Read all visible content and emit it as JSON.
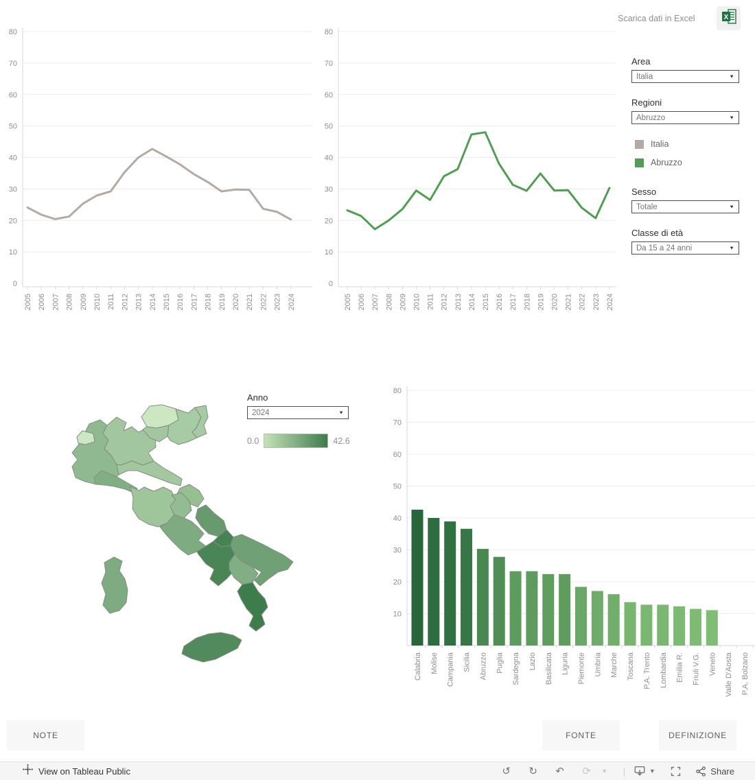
{
  "header": {
    "download_label": "Scarica dati in Excel",
    "excel_icon": "excel-icon"
  },
  "filters": {
    "area": {
      "label": "Area",
      "value": "Italia"
    },
    "regioni": {
      "label": "Regioni",
      "value": "Abruzzo"
    },
    "sesso": {
      "label": "Sesso",
      "value": "Totale"
    },
    "classe": {
      "label": "Classe di età",
      "value": "Da 15 a 24 anni"
    },
    "anno": {
      "label": "Anno",
      "value": "2024"
    }
  },
  "legend": {
    "items": [
      {
        "label": "Italia",
        "color": "#b4aaa1"
      },
      {
        "label": "Abruzzo",
        "color": "#4f9e52"
      }
    ]
  },
  "map_legend": {
    "min": "0.0",
    "max": "42.6",
    "light": "#cde7c1",
    "dark": "#3d7c4b"
  },
  "chart_data": [
    {
      "id": "italia-line",
      "type": "line",
      "series_name": "Italia",
      "color": "#b4aaa1",
      "x": [
        2005,
        2006,
        2007,
        2008,
        2009,
        2010,
        2011,
        2012,
        2013,
        2014,
        2015,
        2016,
        2017,
        2018,
        2019,
        2020,
        2021,
        2022,
        2023,
        2024
      ],
      "values": [
        24.1,
        21.8,
        20.4,
        21.2,
        25.3,
        27.9,
        29.2,
        35.3,
        40.0,
        42.7,
        40.3,
        37.8,
        34.7,
        32.2,
        29.2,
        29.8,
        29.7,
        23.7,
        22.7,
        20.3
      ],
      "ylim": [
        0,
        80
      ],
      "yticks": [
        0,
        10,
        20,
        30,
        40,
        50,
        60,
        70,
        80
      ],
      "grid": true,
      "legend_position": "none"
    },
    {
      "id": "abruzzo-line",
      "type": "line",
      "series_name": "Abruzzo",
      "color": "#4f9e52",
      "x": [
        2005,
        2006,
        2007,
        2008,
        2009,
        2010,
        2011,
        2012,
        2013,
        2014,
        2015,
        2016,
        2017,
        2018,
        2019,
        2020,
        2021,
        2022,
        2023,
        2024
      ],
      "values": [
        23.2,
        21.4,
        17.2,
        20.0,
        23.6,
        29.5,
        26.5,
        34.0,
        36.3,
        47.3,
        48.0,
        38.0,
        31.3,
        29.4,
        34.9,
        29.5,
        29.6,
        24.0,
        20.7,
        30.3
      ],
      "ylim": [
        0,
        80
      ],
      "yticks": [
        0,
        10,
        20,
        30,
        40,
        50,
        60,
        70,
        80
      ],
      "grid": true,
      "legend_position": "none"
    },
    {
      "id": "regioni-bar",
      "type": "bar",
      "categories": [
        "Calabria",
        "Molise",
        "Campania",
        "Sicilia",
        "Abruzzo",
        "Puglia",
        "Sardegna",
        "Lazio",
        "Basilicata",
        "Liguria",
        "Piemonte",
        "Umbria",
        "Marche",
        "Toscana",
        "P.A. Trento",
        "Lombardia",
        "Emilia R.",
        "Friuli V.G.",
        "Veneto",
        "Valle D'Aosta",
        "P.A. Bolzano"
      ],
      "values": [
        42.6,
        40.0,
        38.9,
        36.6,
        30.3,
        27.8,
        23.3,
        23.3,
        22.4,
        22.4,
        18.4,
        17.1,
        16.1,
        13.6,
        12.8,
        12.8,
        12.3,
        11.5,
        11.1,
        null,
        null
      ],
      "ylim": [
        0,
        80
      ],
      "yticks": [
        10,
        20,
        30,
        40,
        50,
        60,
        70,
        80
      ],
      "grid": true,
      "color_scale": {
        "light": "#7fbc74",
        "dark": "#26663a",
        "domain": [
          11.1,
          42.6
        ]
      }
    }
  ],
  "map": {
    "title": "choropleth-italy",
    "value_min": 0.0,
    "value_max": 42.6,
    "regions": [
      {
        "name": "Piemonte",
        "value": 18.4
      },
      {
        "name": "Valle D'Aosta",
        "value": null
      },
      {
        "name": "Lombardia",
        "value": 12.8
      },
      {
        "name": "P.A. Bolzano",
        "value": null
      },
      {
        "name": "P.A. Trento",
        "value": 12.8
      },
      {
        "name": "Veneto",
        "value": 11.1
      },
      {
        "name": "Friuli V.G.",
        "value": 11.5
      },
      {
        "name": "Liguria",
        "value": 22.4
      },
      {
        "name": "Emilia R.",
        "value": 12.3
      },
      {
        "name": "Toscana",
        "value": 13.6
      },
      {
        "name": "Umbria",
        "value": 17.1
      },
      {
        "name": "Marche",
        "value": 16.1
      },
      {
        "name": "Lazio",
        "value": 23.3
      },
      {
        "name": "Abruzzo",
        "value": 30.3
      },
      {
        "name": "Molise",
        "value": 40.0
      },
      {
        "name": "Campania",
        "value": 38.9
      },
      {
        "name": "Puglia",
        "value": 27.8
      },
      {
        "name": "Basilicata",
        "value": 22.4
      },
      {
        "name": "Calabria",
        "value": 42.6
      },
      {
        "name": "Sicilia",
        "value": 36.6
      },
      {
        "name": "Sardegna",
        "value": 23.3
      }
    ]
  },
  "footer": {
    "note": "NOTE",
    "fonte": "FONTE",
    "definizione": "DEFINIZIONE"
  },
  "toolbar": {
    "view_label": "View on Tableau Public",
    "share_label": "Share"
  }
}
